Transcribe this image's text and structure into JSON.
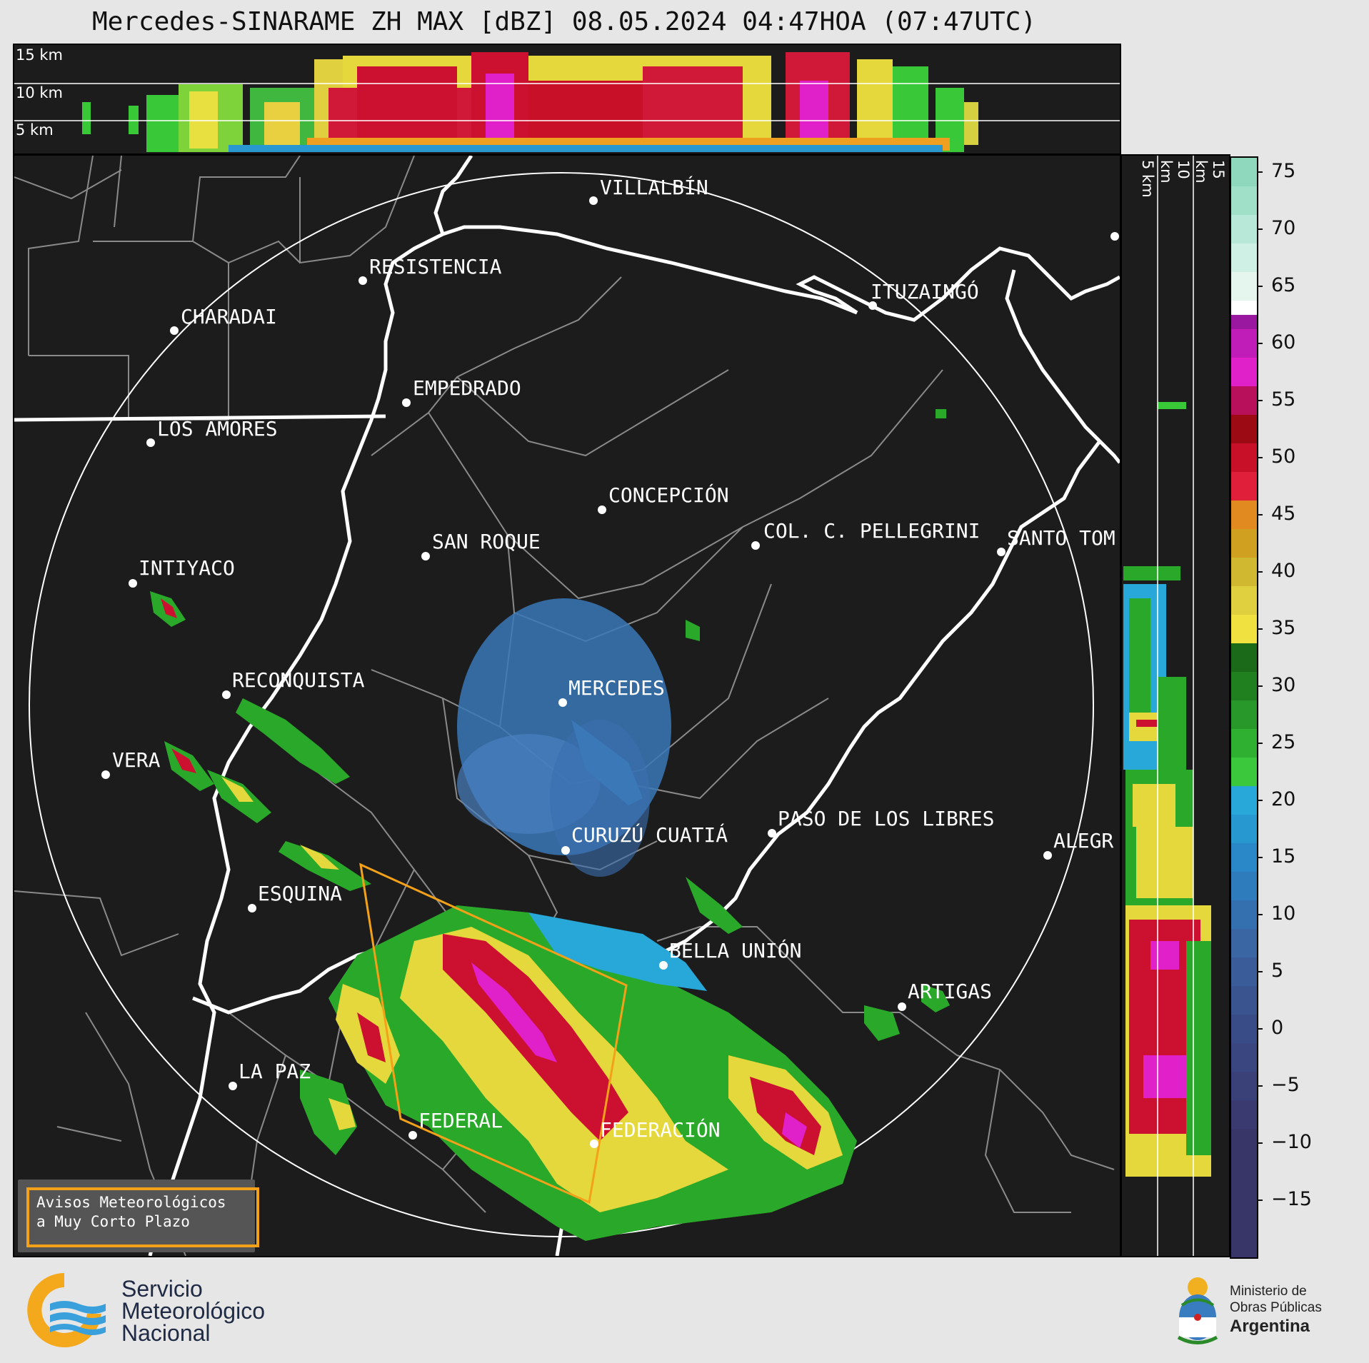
{
  "title": "Mercedes-SINARAME ZH MAX [dBZ] 08.05.2024 04:47HOA (07:47UTC)",
  "top_panel": {
    "km_labels": [
      "15 km",
      "10 km",
      "5 km"
    ]
  },
  "side_panel": {
    "km_labels": [
      "5 km",
      "10 km",
      "15 km"
    ]
  },
  "colorbar": {
    "units": "dBZ",
    "ticks": [
      "75",
      "70",
      "65",
      "60",
      "55",
      "50",
      "45",
      "40",
      "35",
      "30",
      "25",
      "20",
      "15",
      "10",
      "5",
      "0",
      "−5",
      "−10",
      "−15"
    ],
    "colors": {
      "teal": "#8fd8be",
      "white": "#ffffff",
      "magenta": "#e020c8",
      "purple": "#9a18a0",
      "red": "#c81028",
      "orange": "#e08a20",
      "yellow": "#f0e040",
      "green": "#2aa82a",
      "lightblue": "#28a8d8",
      "blue": "#3a6cb0",
      "navy": "#3a3a70"
    }
  },
  "map": {
    "radar_site": "MERCEDES",
    "cities": [
      {
        "name": "VILLALBÍN"
      },
      {
        "name": "RESISTENCIA"
      },
      {
        "name": "CHARADAI"
      },
      {
        "name": "ITUZAINGÓ"
      },
      {
        "name": "EMPEDRADO"
      },
      {
        "name": "LOS AMORES"
      },
      {
        "name": "CONCEPCIÓN"
      },
      {
        "name": "SAN ROQUE"
      },
      {
        "name": "COL. C. PELLEGRINI"
      },
      {
        "name": "SANTO TOM"
      },
      {
        "name": "INTIYACO"
      },
      {
        "name": "MERCEDES"
      },
      {
        "name": "RECONQUISTA"
      },
      {
        "name": "VERA"
      },
      {
        "name": "CURUZÚ CUATIÁ"
      },
      {
        "name": "PASO DE LOS LIBRES"
      },
      {
        "name": "ALEGR"
      },
      {
        "name": "ESQUINA"
      },
      {
        "name": "BELLA UNIÓN"
      },
      {
        "name": "ARTIGAS"
      },
      {
        "name": "LA PAZ"
      },
      {
        "name": "FEDERAL"
      },
      {
        "name": "FEDERACIÓN"
      }
    ],
    "warning_polygon_color": "#f4a11a"
  },
  "warning_box": {
    "line1": "Avisos Meteorológicos",
    "line2": "a Muy Corto Plazo"
  },
  "footer": {
    "smn": {
      "line1": "Servicio",
      "line2": "Meteorológico",
      "line3": "Nacional"
    },
    "ministry": {
      "line1": "Ministerio de",
      "line2": "Obras Públicas",
      "line3": "Argentina"
    }
  }
}
